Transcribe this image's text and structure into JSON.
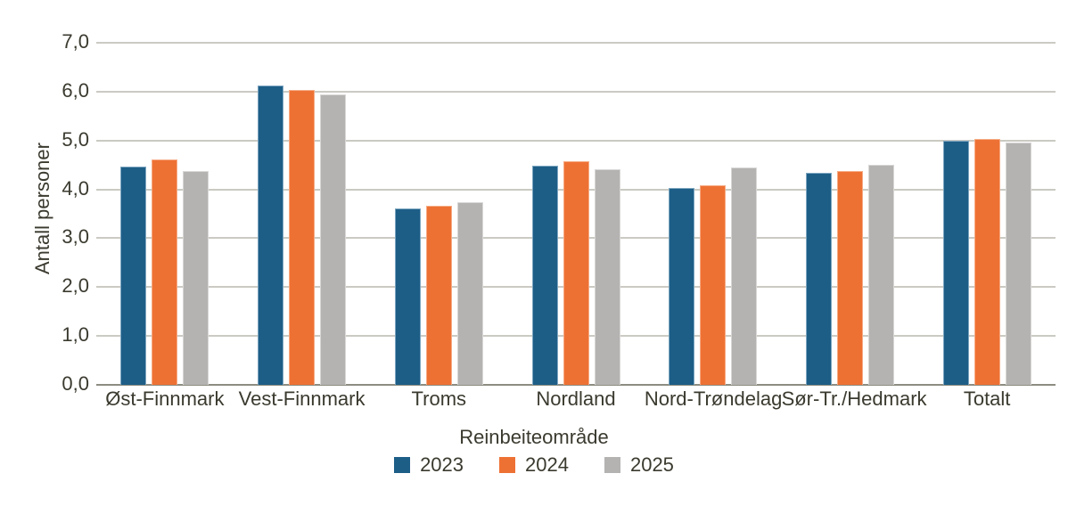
{
  "chart_data": {
    "type": "bar",
    "title": "",
    "xlabel": "Reinbeiteområde",
    "ylabel": "Antall personer",
    "categories": [
      "Øst-Finnmark",
      "Vest-Finnmark",
      "Troms",
      "Nordland",
      "Nord-Trøndelag",
      "Sør-Tr./Hedmark",
      "Totalt"
    ],
    "series": [
      {
        "name": "2023",
        "color": "#1d5e87",
        "edge_color": "#7da6c0",
        "values": [
          4.46,
          6.12,
          3.61,
          4.49,
          4.03,
          4.34,
          5.0
        ]
      },
      {
        "name": "2024",
        "color": "#ee7134",
        "edge_color": "#f6ab84",
        "values": [
          4.61,
          6.04,
          3.67,
          4.57,
          4.08,
          4.38,
          5.04
        ]
      },
      {
        "name": "2025",
        "color": "#b4b3b2",
        "edge_color": "#d8d7d6",
        "values": [
          4.38,
          5.95,
          3.74,
          4.42,
          4.44,
          4.5,
          4.96
        ]
      }
    ],
    "ylim": [
      0,
      7
    ],
    "ytick_labels": [
      "0,0",
      "1,0",
      "2,0",
      "3,0",
      "4,0",
      "5,0",
      "6,0",
      "7,0"
    ],
    "grid": true,
    "legend_position": "bottom",
    "colors": {
      "text": "#3b3a2f",
      "gridline": "#cbcac3",
      "axis_line": "#8e8d82",
      "background": "#ffffff"
    }
  }
}
